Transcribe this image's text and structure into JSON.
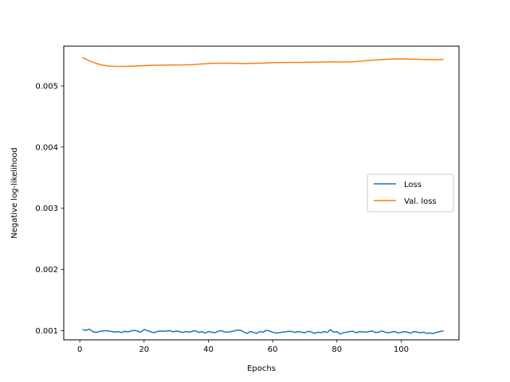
{
  "chart_data": {
    "type": "line",
    "xlabel": "Epochs",
    "ylabel": "Negative log-likelihood",
    "xlim": [
      -5,
      118
    ],
    "ylim": [
      0.00085,
      0.00565
    ],
    "xticks": [
      0,
      20,
      40,
      60,
      80,
      100
    ],
    "yticks": [
      0.001,
      0.002,
      0.003,
      0.004,
      0.005
    ],
    "ytick_labels": [
      "0.001",
      "0.002",
      "0.003",
      "0.004",
      "0.005"
    ],
    "grid": false,
    "legend_position": "center-right",
    "series": [
      {
        "name": "Loss",
        "color": "#1f77b4",
        "x": [
          1,
          2,
          3,
          4,
          5,
          6,
          7,
          8,
          9,
          10,
          11,
          12,
          13,
          14,
          15,
          16,
          17,
          18,
          19,
          20,
          21,
          22,
          23,
          24,
          25,
          26,
          27,
          28,
          29,
          30,
          31,
          32,
          33,
          34,
          35,
          36,
          37,
          38,
          39,
          40,
          41,
          42,
          43,
          44,
          45,
          46,
          47,
          48,
          49,
          50,
          51,
          52,
          53,
          54,
          55,
          56,
          57,
          58,
          59,
          60,
          61,
          62,
          63,
          64,
          65,
          66,
          67,
          68,
          69,
          70,
          71,
          72,
          73,
          74,
          75,
          76,
          77,
          78,
          79,
          80,
          81,
          82,
          83,
          84,
          85,
          86,
          87,
          88,
          89,
          90,
          91,
          92,
          93,
          94,
          95,
          96,
          97,
          98,
          99,
          100,
          101,
          102,
          103,
          104,
          105,
          106,
          107,
          108,
          109,
          110,
          111,
          112,
          113
        ],
        "y": [
          0.001015,
          0.001005,
          0.001025,
          0.000985,
          0.00097,
          0.000985,
          0.000995,
          0.001,
          0.000995,
          0.000985,
          0.000975,
          0.000985,
          0.00097,
          0.00099,
          0.00098,
          0.000995,
          0.001005,
          0.00099,
          0.000975,
          0.00102,
          0.001,
          0.000985,
          0.000965,
          0.000985,
          0.000995,
          0.00099,
          0.000995,
          0.001,
          0.00098,
          0.000995,
          0.000985,
          0.00097,
          0.000985,
          0.000975,
          0.00099,
          0.001,
          0.00097,
          0.000985,
          0.00096,
          0.000985,
          0.000975,
          0.000965,
          0.00099,
          0.001,
          0.00098,
          0.000975,
          0.000985,
          0.000995,
          0.00101,
          0.001005,
          0.00098,
          0.000955,
          0.000985,
          0.000975,
          0.000955,
          0.000985,
          0.000975,
          0.001005,
          0.000995,
          0.000975,
          0.00096,
          0.000965,
          0.000975,
          0.00098,
          0.00099,
          0.000985,
          0.00097,
          0.000985,
          0.000975,
          0.000965,
          0.00099,
          0.00098,
          0.000955,
          0.000975,
          0.000965,
          0.000985,
          0.00097,
          0.001015,
          0.000975,
          0.000985,
          0.000945,
          0.000965,
          0.000975,
          0.000985,
          0.00099,
          0.000965,
          0.000985,
          0.00098,
          0.000975,
          0.000985,
          0.000995,
          0.00097,
          0.000975,
          0.000995,
          0.000975,
          0.000965,
          0.000975,
          0.000985,
          0.000965,
          0.00097,
          0.000985,
          0.000975,
          0.00096,
          0.000985,
          0.000975,
          0.000965,
          0.000975,
          0.000955,
          0.00096,
          0.000955,
          0.00097,
          0.000985,
          0.000995
        ]
      },
      {
        "name": "Val. loss",
        "color": "#ff7f0e",
        "x": [
          1,
          3,
          5,
          7,
          9,
          11,
          13,
          15,
          17,
          19,
          21,
          23,
          25,
          27,
          29,
          31,
          33,
          35,
          37,
          39,
          41,
          43,
          45,
          47,
          49,
          51,
          53,
          55,
          57,
          59,
          61,
          63,
          65,
          67,
          69,
          71,
          73,
          75,
          77,
          79,
          81,
          83,
          85,
          87,
          89,
          91,
          93,
          95,
          97,
          99,
          101,
          103,
          105,
          107,
          109,
          111,
          113
        ],
        "y": [
          0.00546,
          0.00541,
          0.00537,
          0.00534,
          0.005325,
          0.00532,
          0.005318,
          0.00532,
          0.005325,
          0.00533,
          0.005335,
          0.005338,
          0.00534,
          0.00534,
          0.005342,
          0.005343,
          0.005344,
          0.005348,
          0.005355,
          0.005362,
          0.005368,
          0.00537,
          0.005372,
          0.00537,
          0.005368,
          0.005366,
          0.005367,
          0.00537,
          0.005374,
          0.005378,
          0.00538,
          0.005382,
          0.005383,
          0.005383,
          0.005384,
          0.005386,
          0.005388,
          0.00539,
          0.005392,
          0.005393,
          0.005392,
          0.005392,
          0.005395,
          0.005402,
          0.005412,
          0.00542,
          0.005428,
          0.005434,
          0.005438,
          0.00544,
          0.00544,
          0.005438,
          0.005435,
          0.005432,
          0.00543,
          0.005429,
          0.005432
        ]
      }
    ]
  }
}
